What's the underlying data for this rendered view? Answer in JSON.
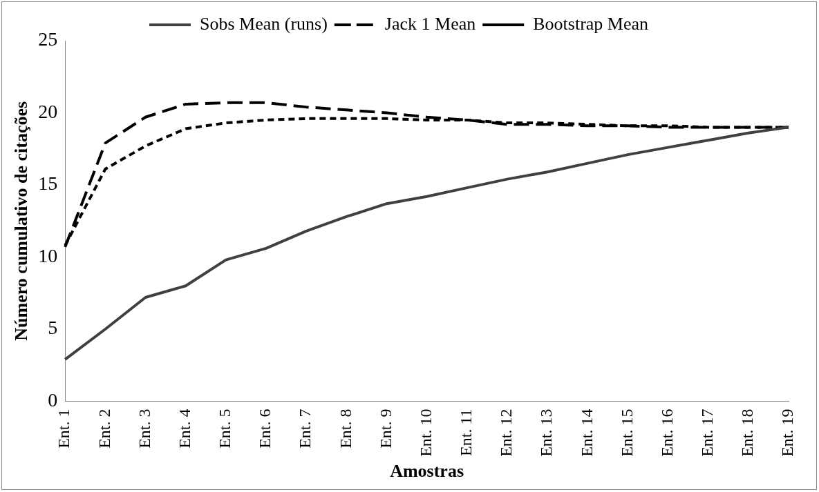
{
  "chart_data": {
    "type": "line",
    "xlabel": "Amostras",
    "ylabel": "Número cumulativo de citações",
    "categories": [
      "Ent. 1",
      "Ent. 2",
      "Ent. 3",
      "Ent. 4",
      "Ent. 5",
      "Ent. 6",
      "Ent. 7",
      "Ent. 8",
      "Ent. 9",
      "Ent. 10",
      "Ent. 11",
      "Ent. 12",
      "Ent. 13",
      "Ent. 14",
      "Ent. 15",
      "Ent. 16",
      "Ent. 17",
      "Ent. 18",
      "Ent. 19"
    ],
    "series": [
      {
        "name": "Sobs Mean (runs)",
        "color": "#404040",
        "line_style": "solid",
        "values": [
          2.9,
          5.0,
          7.2,
          8.0,
          9.8,
          10.6,
          11.8,
          12.8,
          13.7,
          14.2,
          14.8,
          15.4,
          15.9,
          16.5,
          17.1,
          17.6,
          18.1,
          18.6,
          19.0
        ]
      },
      {
        "name": "Jack 1 Mean",
        "color": "#000000",
        "line_style": "dashed",
        "values": [
          10.7,
          17.9,
          19.7,
          20.6,
          20.7,
          20.7,
          20.4,
          20.2,
          20.0,
          19.7,
          19.5,
          19.2,
          19.2,
          19.1,
          19.1,
          19.0,
          19.0,
          19.0,
          19.0
        ]
      },
      {
        "name": "Bootstrap Mean",
        "color": "#000000",
        "line_style": "dotted",
        "values": [
          10.8,
          16.1,
          17.7,
          18.9,
          19.3,
          19.5,
          19.6,
          19.6,
          19.6,
          19.5,
          19.5,
          19.3,
          19.3,
          19.2,
          19.1,
          19.1,
          19.0,
          19.0,
          19.0
        ]
      }
    ],
    "ylim": [
      0,
      25
    ],
    "yticks": [
      0,
      5,
      10,
      15,
      20,
      25
    ],
    "grid": false,
    "legend": "top",
    "marker": "none"
  }
}
